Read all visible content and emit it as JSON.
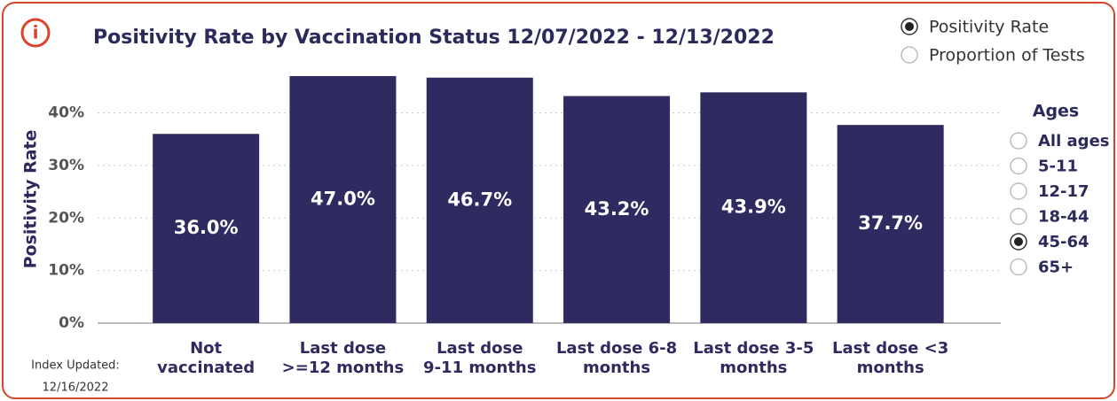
{
  "chart_data": {
    "type": "bar",
    "title": "Positivity Rate by Vaccination Status 12/07/2022 - 12/13/2022",
    "y_label": "Positivity Rate",
    "categories": [
      "Not\nvaccinated",
      "Last dose\n>=12 months",
      "Last dose\n9-11 months",
      "Last dose 6-8\nmonths",
      "Last dose 3-5\nmonths",
      "Last dose <3\nmonths"
    ],
    "values": [
      36.0,
      47.0,
      46.7,
      43.2,
      43.9,
      37.7
    ],
    "value_labels": [
      "36.0%",
      "47.0%",
      "46.7%",
      "43.2%",
      "43.9%",
      "37.7%"
    ],
    "color": "#2f2a60",
    "ylim": [
      0,
      48
    ],
    "yticks": [
      {
        "value": 0,
        "label": "0%"
      },
      {
        "value": 10,
        "label": "10%"
      },
      {
        "value": 20,
        "label": "20%"
      },
      {
        "value": 30,
        "label": "30%"
      },
      {
        "value": 40,
        "label": "40%"
      }
    ],
    "grid": true
  },
  "metric_options": [
    {
      "label": "Positivity Rate",
      "selected": true
    },
    {
      "label": "Proportion of Tests",
      "selected": false
    }
  ],
  "ages": {
    "title": "Ages",
    "options": [
      {
        "label": "All ages",
        "selected": false
      },
      {
        "label": "5-11",
        "selected": false
      },
      {
        "label": "12-17",
        "selected": false
      },
      {
        "label": "18-44",
        "selected": false
      },
      {
        "label": "45-64",
        "selected": true
      },
      {
        "label": "65+",
        "selected": false
      }
    ]
  },
  "index_updated": [
    "Index Updated:",
    "12/16/2022"
  ]
}
